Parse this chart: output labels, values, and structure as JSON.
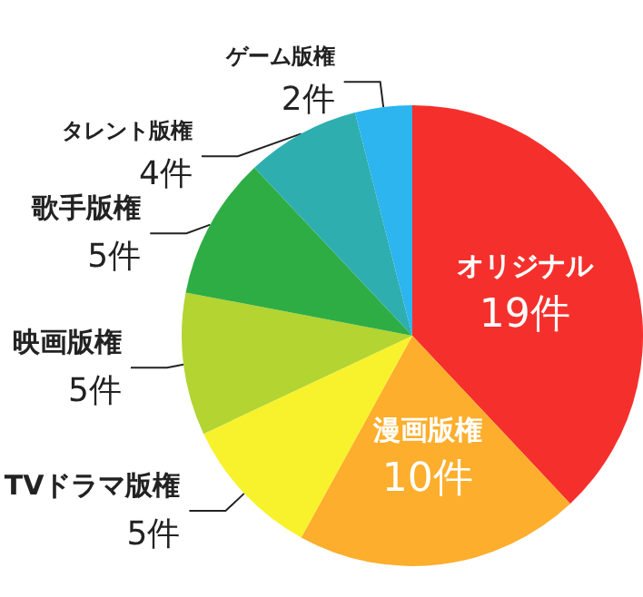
{
  "chart_data": {
    "type": "pie",
    "categories": [
      "オリジナル",
      "漫画版権",
      "TVドラマ版権",
      "映画版権",
      "歌手版権",
      "タレント版権",
      "ゲーム版権"
    ],
    "values": [
      19,
      10,
      5,
      5,
      5,
      4,
      2
    ],
    "value_labels": [
      "19件",
      "10件",
      "5件",
      "5件",
      "5件",
      "4件",
      "2件"
    ],
    "colors": [
      "#f5302c",
      "#fdae2c",
      "#f8f22c",
      "#b3d431",
      "#2fad45",
      "#2eaeaf",
      "#2cb5ee"
    ],
    "legend": false
  }
}
